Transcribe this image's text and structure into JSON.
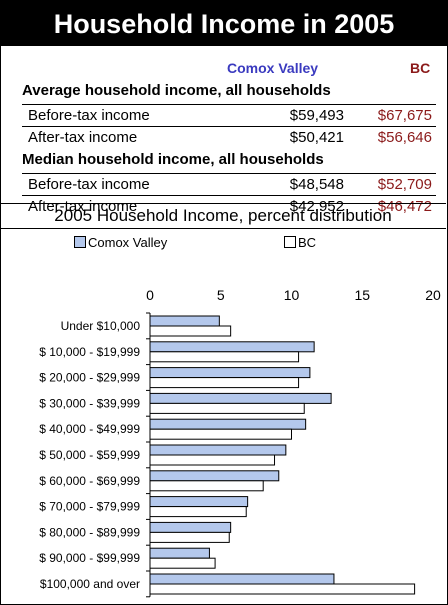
{
  "title": "Household Income in 2005",
  "columns": {
    "area": "Comox Valley",
    "province": "BC"
  },
  "sections": [
    {
      "heading": "Average household income, all households",
      "rows": [
        {
          "label": "Before-tax income",
          "area": "$59,493",
          "province": "$67,675"
        },
        {
          "label": "After-tax income",
          "area": "$50,421",
          "province": "$56,646"
        }
      ]
    },
    {
      "heading": "Median household income, all households",
      "rows": [
        {
          "label": "Before-tax income",
          "area": "$48,548",
          "province": "$52,709"
        },
        {
          "label": "After-tax income",
          "area": "$42,952",
          "province": "$46,472"
        }
      ]
    }
  ],
  "distribution_title": "2005 Household Income, percent distribution",
  "colors": {
    "area_bar": "#b4c8ec",
    "province_bar": "#ffffff",
    "area_text": "#3a3abf",
    "province_text": "#8b1a1a"
  },
  "chart_data": {
    "type": "bar",
    "orientation": "horizontal",
    "categories": [
      "Under $10,000",
      "$ 10,000 - $19,999",
      "$ 20,000 - $29,999",
      "$ 30,000 - $39,999",
      "$ 40,000 - $49,999",
      "$ 50,000 - $59,999",
      "$ 60,000 - $69,999",
      "$ 70,000 - $79,999",
      "$ 80,000 - $89,999",
      "$ 90,000 - $99,999",
      "$100,000 and over"
    ],
    "series": [
      {
        "name": "Comox Valley",
        "values": [
          4.9,
          11.6,
          11.3,
          12.8,
          11.0,
          9.6,
          9.1,
          6.9,
          5.7,
          4.2,
          13.0
        ]
      },
      {
        "name": "BC",
        "values": [
          5.7,
          10.5,
          10.5,
          10.9,
          10.0,
          8.8,
          8.0,
          6.8,
          5.6,
          4.6,
          18.7
        ]
      }
    ],
    "xlim": [
      0,
      20
    ],
    "xticks": [
      "0",
      "5",
      "10",
      "15",
      "20"
    ],
    "legend": "top",
    "grid": false
  }
}
